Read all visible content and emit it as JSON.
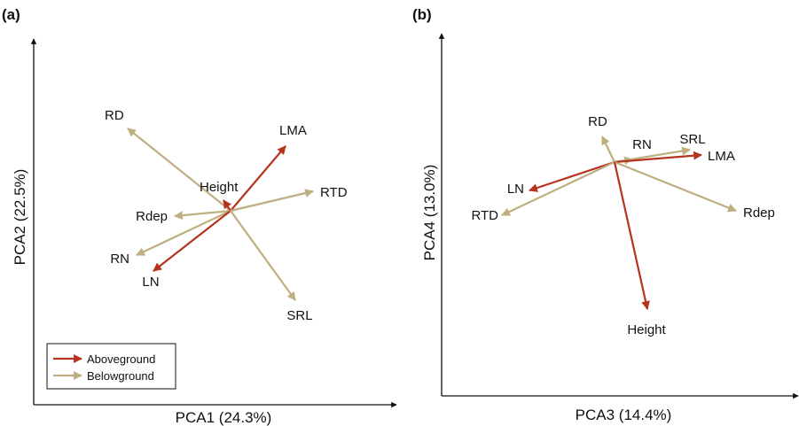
{
  "colors": {
    "aboveground": "#b5341f",
    "belowground": "#bfae80",
    "axis": "#111111"
  },
  "chart_data": [
    {
      "type": "biplot",
      "panel_label": "(a)",
      "xlabel": "PCA1 (24.3%)",
      "ylabel": "PCA2 (22.5%)",
      "legend": {
        "placement": "bottom-left",
        "entries": [
          {
            "name": "Aboveground",
            "color": "#b5341f"
          },
          {
            "name": "Belowground",
            "color": "#bfae80"
          }
        ]
      },
      "vectors": [
        {
          "label": "RD",
          "group": "belowground",
          "x": -1.16,
          "y": 0.93
        },
        {
          "label": "LMA",
          "group": "aboveground",
          "x": 0.62,
          "y": 0.73
        },
        {
          "label": "Height",
          "group": "aboveground",
          "x": -0.08,
          "y": 0.12
        },
        {
          "label": "RTD",
          "group": "belowground",
          "x": 0.93,
          "y": 0.22
        },
        {
          "label": "Rdep",
          "group": "belowground",
          "x": -0.63,
          "y": -0.06
        },
        {
          "label": "RN",
          "group": "belowground",
          "x": -1.06,
          "y": -0.5
        },
        {
          "label": "LN",
          "group": "aboveground",
          "x": -0.87,
          "y": -0.68
        },
        {
          "label": "SRL",
          "group": "belowground",
          "x": 0.73,
          "y": -1.01
        }
      ]
    },
    {
      "type": "biplot",
      "panel_label": "(b)",
      "xlabel": "PCA3 (14.4%)",
      "ylabel": "PCA4 (13.0%)",
      "vectors": [
        {
          "label": "RD",
          "group": "belowground",
          "x": -0.14,
          "y": 0.29
        },
        {
          "label": "RN",
          "group": "belowground",
          "x": 0.2,
          "y": 0.03
        },
        {
          "label": "SRL",
          "group": "belowground",
          "x": 0.85,
          "y": 0.14
        },
        {
          "label": "LMA",
          "group": "aboveground",
          "x": 0.98,
          "y": 0.08
        },
        {
          "label": "Rdep",
          "group": "belowground",
          "x": 1.37,
          "y": -0.55
        },
        {
          "label": "LN",
          "group": "aboveground",
          "x": -0.96,
          "y": -0.32
        },
        {
          "label": "RTD",
          "group": "belowground",
          "x": -1.27,
          "y": -0.6
        },
        {
          "label": "Height",
          "group": "aboveground",
          "x": 0.37,
          "y": -1.66
        }
      ]
    }
  ]
}
